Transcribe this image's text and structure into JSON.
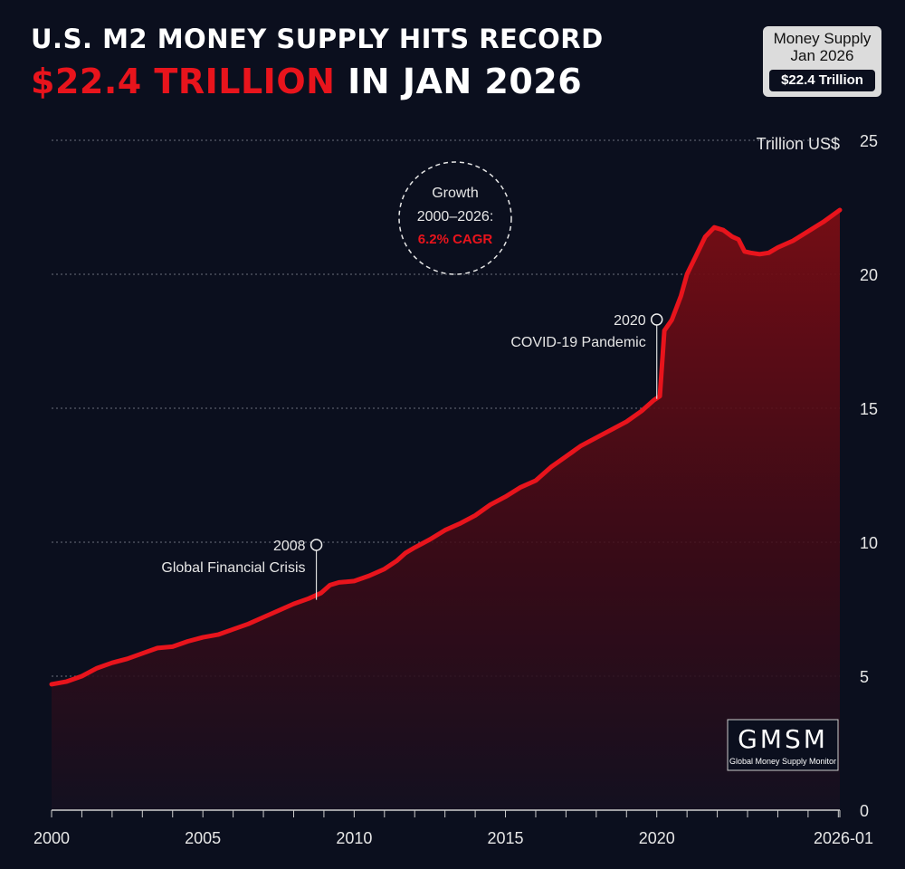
{
  "header": {
    "title_line1": "U.S. M2 MONEY SUPPLY HITS RECORD",
    "title_highlight": "$22.4 TRILLION",
    "title_rest": " IN JAN 2026"
  },
  "badge": {
    "line1": "Money Supply",
    "line2": "Jan 2026",
    "value": "$22.4 Trillion"
  },
  "logo": {
    "text": "GMSM",
    "subtitle": "Global Money Supply Monitor"
  },
  "colors": {
    "background": "#0b0f1e",
    "line": "#e8141c",
    "accent_red": "#e8141c",
    "grid": "#6b6f7c"
  },
  "chart_data": {
    "type": "area",
    "title": "U.S. M2 Money Supply",
    "ylabel": "Trillion US$",
    "xlim": [
      2000,
      2026.05
    ],
    "ylim": [
      0,
      25
    ],
    "yticks": [
      0,
      5,
      10,
      15,
      20,
      25
    ],
    "xtick_labels": [
      {
        "x": 2000,
        "label": "2000"
      },
      {
        "x": 2005,
        "label": "2005"
      },
      {
        "x": 2010,
        "label": "2010"
      },
      {
        "x": 2015,
        "label": "2015"
      },
      {
        "x": 2020,
        "label": "2020"
      },
      {
        "x": 2026.05,
        "label": "2026-01"
      }
    ],
    "series": [
      {
        "name": "M2 Money Supply",
        "x": [
          2000,
          2000.5,
          2001,
          2001.5,
          2002,
          2002.5,
          2003,
          2003.5,
          2004,
          2004.5,
          2005,
          2005.5,
          2006,
          2006.5,
          2007,
          2007.5,
          2008,
          2008.5,
          2008.9,
          2009.2,
          2009.5,
          2010,
          2010.5,
          2011,
          2011.4,
          2011.7,
          2012,
          2012.5,
          2013,
          2013.5,
          2014,
          2014.5,
          2015,
          2015.5,
          2016,
          2016.5,
          2017,
          2017.5,
          2018,
          2018.5,
          2019,
          2019.5,
          2019.9,
          2020.1,
          2020.25,
          2020.5,
          2020.8,
          2021,
          2021.3,
          2021.6,
          2021.9,
          2022.2,
          2022.5,
          2022.7,
          2022.9,
          2023.1,
          2023.4,
          2023.7,
          2024,
          2024.5,
          2025,
          2025.5,
          2026.05
        ],
        "values": [
          4.7,
          4.8,
          5.0,
          5.3,
          5.5,
          5.65,
          5.85,
          6.05,
          6.1,
          6.3,
          6.45,
          6.55,
          6.75,
          6.95,
          7.2,
          7.45,
          7.7,
          7.9,
          8.1,
          8.4,
          8.5,
          8.55,
          8.75,
          9.0,
          9.3,
          9.6,
          9.8,
          10.1,
          10.45,
          10.7,
          11.0,
          11.4,
          11.7,
          12.05,
          12.3,
          12.8,
          13.2,
          13.6,
          13.9,
          14.2,
          14.5,
          14.9,
          15.3,
          15.45,
          17.9,
          18.3,
          19.2,
          20.0,
          20.7,
          21.4,
          21.75,
          21.65,
          21.4,
          21.3,
          20.85,
          20.8,
          20.75,
          20.8,
          21.0,
          21.25,
          21.6,
          21.95,
          22.4
        ]
      }
    ],
    "annotations": [
      {
        "year_label": "2008",
        "text": "Global Financial Crisis",
        "x": 2008.75,
        "y": 7.85
      },
      {
        "year_label": "2020",
        "text": "COVID-19 Pandemic",
        "x": 2020.0,
        "y": 15.35
      }
    ],
    "callout": {
      "line1": "Growth",
      "line2": "2000–2026:",
      "line3": "6.2% CAGR"
    }
  }
}
